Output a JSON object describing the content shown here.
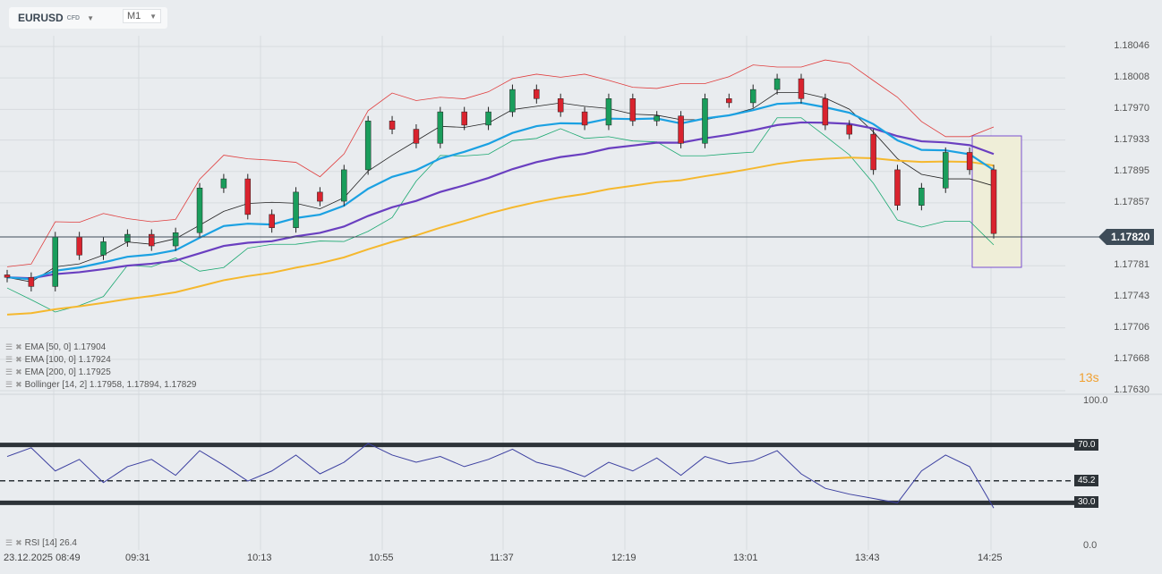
{
  "header": {
    "symbol": "EURUSD",
    "type": "CFD",
    "timeframe": "M1"
  },
  "legend": [
    {
      "label": "EMA [50, 0] 1.17904"
    },
    {
      "label": "EMA [100, 0] 1.17924"
    },
    {
      "label": "EMA [200, 0] 1.17925"
    },
    {
      "label": "Bollinger  [14, 2] 1.17958,  1.17894,  1.17829"
    }
  ],
  "rsi_legend": "RSI [14] 26.4",
  "timer": "13s",
  "colors": {
    "up": "#1a9d5c",
    "down": "#d9232e",
    "ema50": "#1ba1e2",
    "ema100": "#6a3fc0",
    "ema200": "#f5b82e",
    "boll": "#e03c3c",
    "rsi": "#3b3fa0"
  },
  "chart_data": [
    {
      "type": "candlestick",
      "title": "EURUSD M1",
      "ylim": [
        1.1763,
        1.18046
      ],
      "price_ticks": [
        "1.18046",
        "1.18008",
        "1.17970",
        "1.17933",
        "1.17895",
        "1.17857",
        "1.17781",
        "1.17743",
        "1.17706",
        "1.17668",
        "1.17630"
      ],
      "current_price": "1.17820",
      "x_ticks": [
        "23.12.2025  08:49",
        "09:31",
        "10:13",
        "10:55",
        "11:37",
        "12:19",
        "13:01",
        "13:43",
        "14:25"
      ],
      "closes": [
        1.17767,
        1.17756,
        1.17816,
        1.17794,
        1.1781,
        1.17819,
        1.17805,
        1.17821,
        1.17875,
        1.17886,
        1.17843,
        1.17827,
        1.1787,
        1.17859,
        1.17897,
        1.17956,
        1.17946,
        1.17929,
        1.17967,
        1.17951,
        1.17967,
        1.17994,
        1.17983,
        1.17967,
        1.17951,
        1.17983,
        1.17956,
        1.17962,
        1.17929,
        1.17983,
        1.17978,
        1.17994,
        1.18007,
        1.17983,
        1.17951,
        1.1794,
        1.17897,
        1.17854,
        1.17875,
        1.17918,
        1.17897,
        1.1782
      ]
    },
    {
      "type": "line",
      "title": "RSI [14]",
      "ylim": [
        0,
        100
      ],
      "y_ticks": [
        "100.0",
        "70.0",
        "45.2",
        "30.0",
        "0.0"
      ],
      "levels": [
        70,
        45.2,
        30
      ],
      "values": [
        62,
        68,
        52,
        60,
        44,
        55,
        60,
        49,
        66,
        56,
        45,
        52,
        63,
        50,
        58,
        71,
        63,
        58,
        62,
        55,
        60,
        67,
        58,
        54,
        48,
        58,
        52,
        61,
        49,
        62,
        57,
        59,
        66,
        50,
        40,
        36,
        33,
        30,
        52,
        63,
        55,
        26.4
      ]
    }
  ]
}
